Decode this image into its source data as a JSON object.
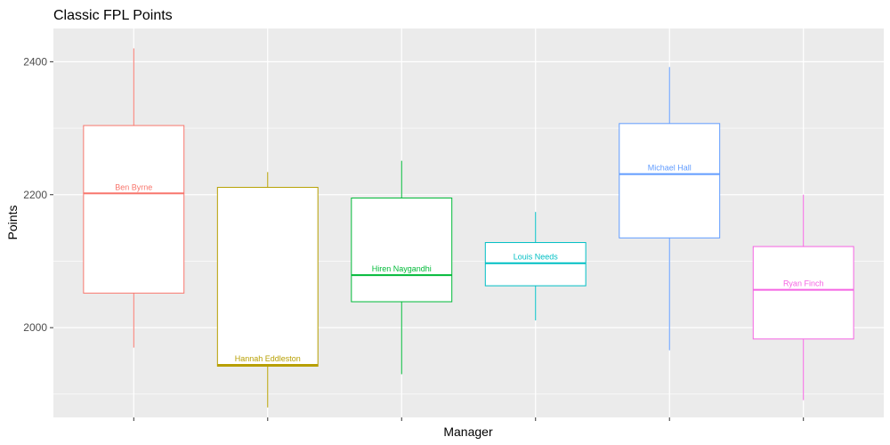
{
  "chart_data": {
    "type": "boxplot",
    "title": "Classic FPL Points",
    "xlabel": "Manager",
    "ylabel": "Points",
    "ylim": [
      1865,
      2450
    ],
    "yticks": [
      2000,
      2200,
      2400
    ],
    "grid": true,
    "legend": "none",
    "background": "#ebebeb",
    "gridline_color": "#ffffff",
    "categories": [
      "Ben Byrne",
      "Hannah Eddleston",
      "Hiren Naygandhi",
      "Louis Needs",
      "Michael Hall",
      "Ryan Finch"
    ],
    "series": [
      {
        "category": "Ben Byrne",
        "min": 1970,
        "q1": 2052,
        "median": 2202,
        "q3": 2304,
        "max": 2420,
        "color": "#f8766d"
      },
      {
        "category": "Hannah Eddleston",
        "min": 1880,
        "q1": 1942,
        "median": 1944,
        "q3": 2211,
        "max": 2234,
        "color": "#b79f00"
      },
      {
        "category": "Hiren Naygandhi",
        "min": 1930,
        "q1": 2039,
        "median": 2079,
        "q3": 2195,
        "max": 2251,
        "color": "#00ba38"
      },
      {
        "category": "Louis Needs",
        "min": 2011,
        "q1": 2063,
        "median": 2097,
        "q3": 2128,
        "max": 2174,
        "color": "#00bfc4"
      },
      {
        "category": "Michael Hall",
        "min": 1966,
        "q1": 2135,
        "median": 2231,
        "q3": 2307,
        "max": 2392,
        "color": "#619cff"
      },
      {
        "category": "Ryan Finch",
        "min": 1891,
        "q1": 1983,
        "median": 2057,
        "q3": 2122,
        "max": 2200,
        "color": "#f564e3"
      }
    ]
  }
}
